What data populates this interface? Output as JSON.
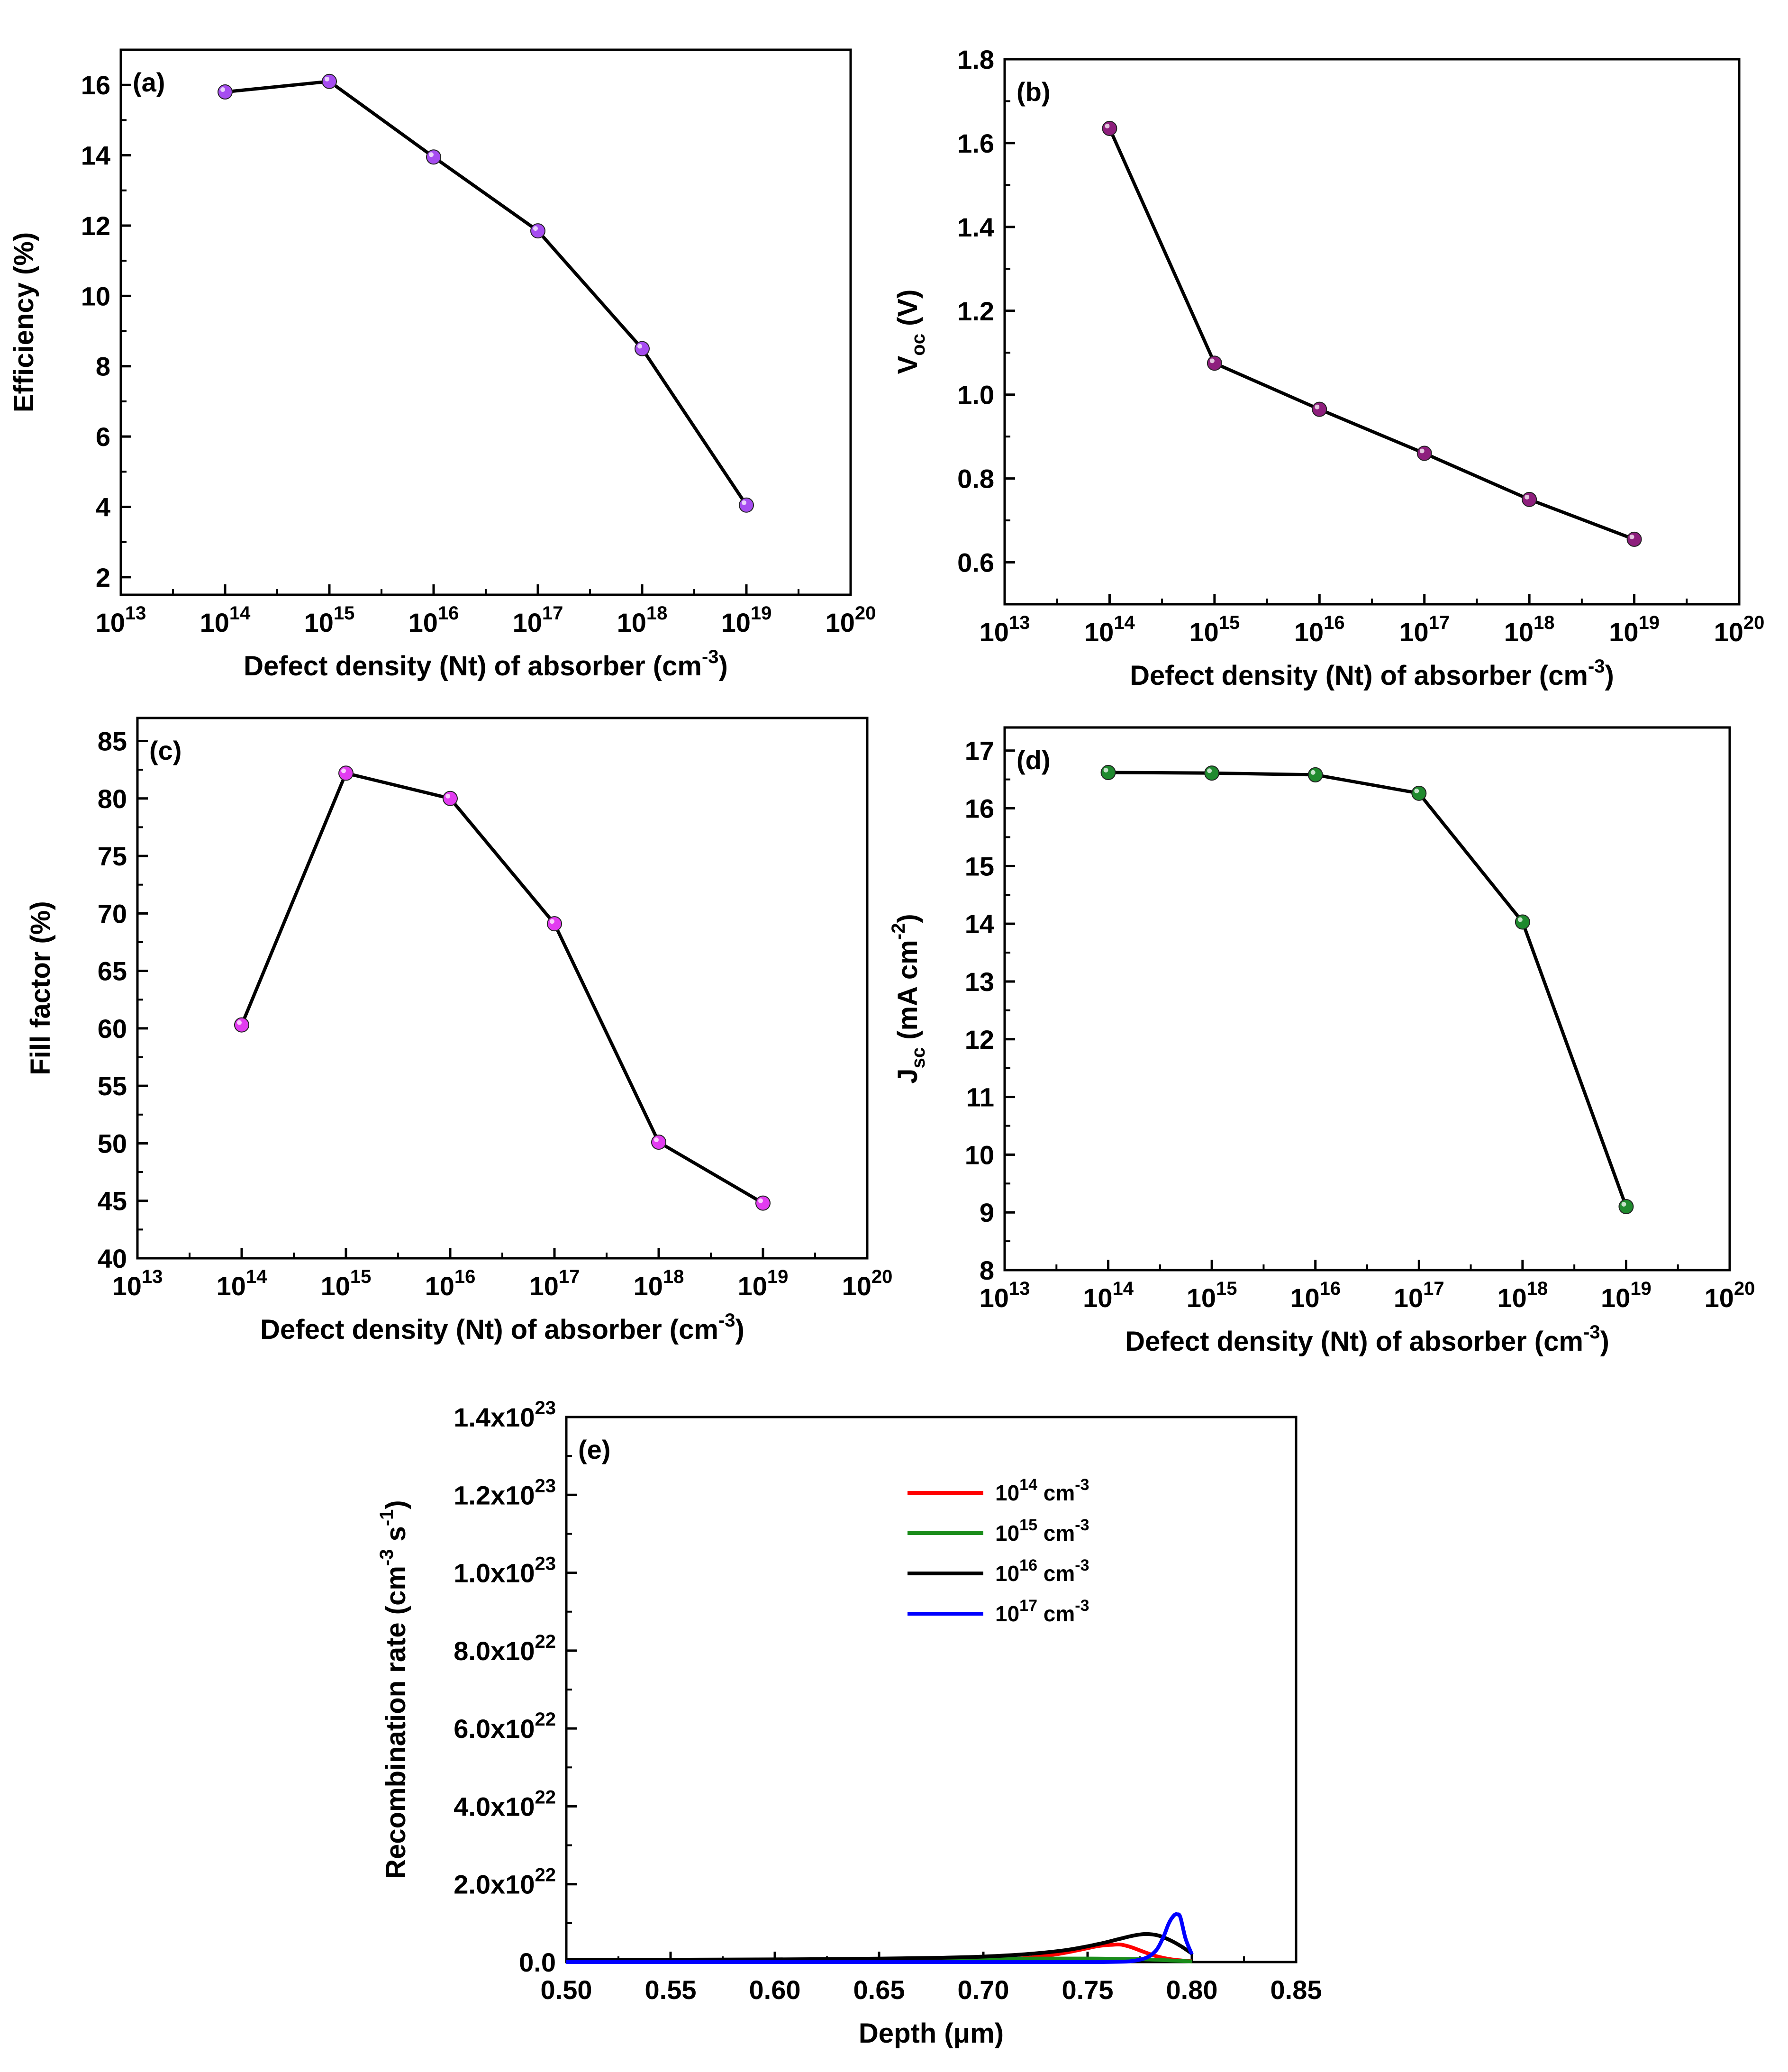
{
  "figure": {
    "description_free": true
  },
  "chart_data": [
    {
      "id": "a",
      "type": "line",
      "panel_label": "(a)",
      "xscale": "log",
      "xlim": [
        13,
        20
      ],
      "xticks": [
        13,
        14,
        15,
        16,
        17,
        18,
        19,
        20
      ],
      "xtick_base": "10",
      "xlabel": "Defect density (Nt) of absorber (cm",
      "xlabel_sup": "-3",
      "xlabel_tail": ")",
      "ylabel": "Efficiency (%)",
      "ylim": [
        1.5,
        17
      ],
      "yticks": [
        2,
        4,
        6,
        8,
        10,
        12,
        14,
        16
      ],
      "x": [
        14,
        15,
        16,
        17,
        18,
        19
      ],
      "series": [
        {
          "name": "Efficiency",
          "values": [
            15.8,
            16.1,
            13.95,
            11.85,
            8.5,
            4.05
          ],
          "color": "#A64DF0"
        }
      ]
    },
    {
      "id": "b",
      "type": "line",
      "panel_label": "(b)",
      "xscale": "log",
      "xlim": [
        13,
        20
      ],
      "xticks": [
        13,
        14,
        15,
        16,
        17,
        18,
        19,
        20
      ],
      "xtick_base": "10",
      "xlabel": "Defect density (Nt) of absorber (cm",
      "xlabel_sup": "-3",
      "xlabel_tail": ")",
      "ylabel": "V",
      "ylabel_sub": "oc",
      "ylabel_tail": " (V)",
      "ylim": [
        0.5,
        1.8
      ],
      "yticks": [
        0.6,
        0.8,
        1.0,
        1.2,
        1.4,
        1.6,
        1.8
      ],
      "ytick_decimals": 1,
      "x": [
        14,
        15,
        16,
        17,
        18,
        19
      ],
      "series": [
        {
          "name": "Voc",
          "values": [
            1.635,
            1.075,
            0.965,
            0.86,
            0.75,
            0.655
          ],
          "color": "#8E1F7D"
        }
      ]
    },
    {
      "id": "c",
      "type": "line",
      "panel_label": "(c)",
      "xscale": "log",
      "xlim": [
        13,
        20
      ],
      "xticks": [
        13,
        14,
        15,
        16,
        17,
        18,
        19,
        20
      ],
      "xtick_base": "10",
      "xlabel": "Defect density (Nt) of absorber (cm",
      "xlabel_sup": "-3",
      "xlabel_tail": ")",
      "ylabel": "Fill factor (%)",
      "ylim": [
        40,
        87
      ],
      "yticks": [
        40,
        45,
        50,
        55,
        60,
        65,
        70,
        75,
        80,
        85
      ],
      "x": [
        14,
        15,
        16,
        17,
        18,
        19
      ],
      "series": [
        {
          "name": "Fill factor",
          "values": [
            60.3,
            82.2,
            80.0,
            69.1,
            50.1,
            44.8
          ],
          "color": "#E23CF0"
        }
      ]
    },
    {
      "id": "d",
      "type": "line",
      "panel_label": "(d)",
      "xscale": "log",
      "xlim": [
        13,
        20
      ],
      "xticks": [
        13,
        14,
        15,
        16,
        17,
        18,
        19,
        20
      ],
      "xtick_base": "10",
      "xlabel": "Defect density (Nt) of absorber (cm",
      "xlabel_sup": "-3",
      "xlabel_tail": ")",
      "ylabel": "J",
      "ylabel_sub": "sc",
      "ylabel_tail": " (mA cm",
      "ylabel_sup": "-2",
      "ylabel_end": ")",
      "ylim": [
        8,
        17.4
      ],
      "yticks": [
        8,
        9,
        10,
        11,
        12,
        13,
        14,
        15,
        16,
        17
      ],
      "x": [
        14,
        15,
        16,
        17,
        18,
        19
      ],
      "series": [
        {
          "name": "Jsc",
          "values": [
            16.62,
            16.61,
            16.58,
            16.26,
            14.03,
            9.1
          ],
          "color": "#1F8A2E"
        }
      ]
    },
    {
      "id": "e",
      "type": "line",
      "panel_label": "(e)",
      "xlim": [
        0.5,
        0.85
      ],
      "xticks": [
        0.5,
        0.55,
        0.6,
        0.65,
        0.7,
        0.75,
        0.8,
        0.85
      ],
      "xtick_decimals": 2,
      "xlabel": "Depth (",
      "xlabel_mu": "μ",
      "xlabel_tail": "m)",
      "ylabel": "Recombination rate (cm",
      "ylabel_sup": "-3",
      "ylabel_mid": " s",
      "ylabel_sup2": "-1",
      "ylabel_end": ")",
      "ylim": [
        0,
        1.4
      ],
      "yticks": [
        0.0,
        2.0,
        4.0,
        6.0,
        8.0,
        10.0,
        12.0,
        14.0
      ],
      "ytick_labels": [
        {
          "text": "0.0",
          "exp": ""
        },
        {
          "text": "2.0x10",
          "exp": "22"
        },
        {
          "text": "4.0x10",
          "exp": "22"
        },
        {
          "text": "6.0x10",
          "exp": "22"
        },
        {
          "text": "8.0x10",
          "exp": "22"
        },
        {
          "text": "1.0x10",
          "exp": "23"
        },
        {
          "text": "1.2x10",
          "exp": "23"
        },
        {
          "text": "1.4x10",
          "exp": "23"
        }
      ],
      "y_unit": "x10^23",
      "series": [
        {
          "name": "10^14 cm^-3",
          "label_base": "10",
          "label_exp": "14",
          "label_unit": " cm",
          "label_unit_exp": "-3",
          "color": "#FF0000",
          "x": [
            0.5,
            0.6,
            0.65,
            0.7,
            0.72,
            0.735,
            0.745,
            0.755,
            0.762,
            0.766,
            0.771,
            0.777,
            0.783,
            0.79,
            0.797,
            0.8
          ],
          "y": [
            0.0,
            0.0,
            0.001,
            0.004,
            0.01,
            0.02,
            0.03,
            0.041,
            0.0445,
            0.0448,
            0.038,
            0.026,
            0.015,
            0.007,
            0.003,
            0.002
          ]
        },
        {
          "name": "10^15 cm^-3",
          "label_base": "10",
          "label_exp": "15",
          "label_unit": " cm",
          "label_unit_exp": "-3",
          "color": "#1A8C1A",
          "x": [
            0.5,
            0.55,
            0.6,
            0.65,
            0.7,
            0.72,
            0.74,
            0.755,
            0.77,
            0.78,
            0.79,
            0.8
          ],
          "y": [
            0.0015,
            0.003,
            0.005,
            0.0067,
            0.0082,
            0.0088,
            0.009,
            0.0088,
            0.0078,
            0.0065,
            0.004,
            0.0015
          ]
        },
        {
          "name": "10^16 cm^-3",
          "label_base": "10",
          "label_exp": "16",
          "label_unit": " cm",
          "label_unit_exp": "-3",
          "color": "#000000",
          "x": [
            0.5,
            0.55,
            0.6,
            0.65,
            0.68,
            0.7,
            0.72,
            0.74,
            0.755,
            0.765,
            0.772,
            0.778,
            0.784,
            0.79,
            0.795,
            0.8
          ],
          "y": [
            0.0055,
            0.006,
            0.0068,
            0.0088,
            0.011,
            0.014,
            0.02,
            0.031,
            0.046,
            0.059,
            0.068,
            0.072,
            0.068,
            0.055,
            0.04,
            0.022
          ]
        },
        {
          "name": "10^17 cm^-3",
          "label_base": "10",
          "label_exp": "17",
          "label_unit": " cm",
          "label_unit_exp": "-3",
          "color": "#0000FF",
          "x": [
            0.5,
            0.7,
            0.76,
            0.775,
            0.782,
            0.786,
            0.789,
            0.7915,
            0.793,
            0.7945,
            0.797,
            0.8
          ],
          "y": [
            0.0,
            0.0,
            0.0003,
            0.006,
            0.025,
            0.06,
            0.1,
            0.12,
            0.1225,
            0.115,
            0.06,
            0.02
          ]
        }
      ]
    }
  ]
}
